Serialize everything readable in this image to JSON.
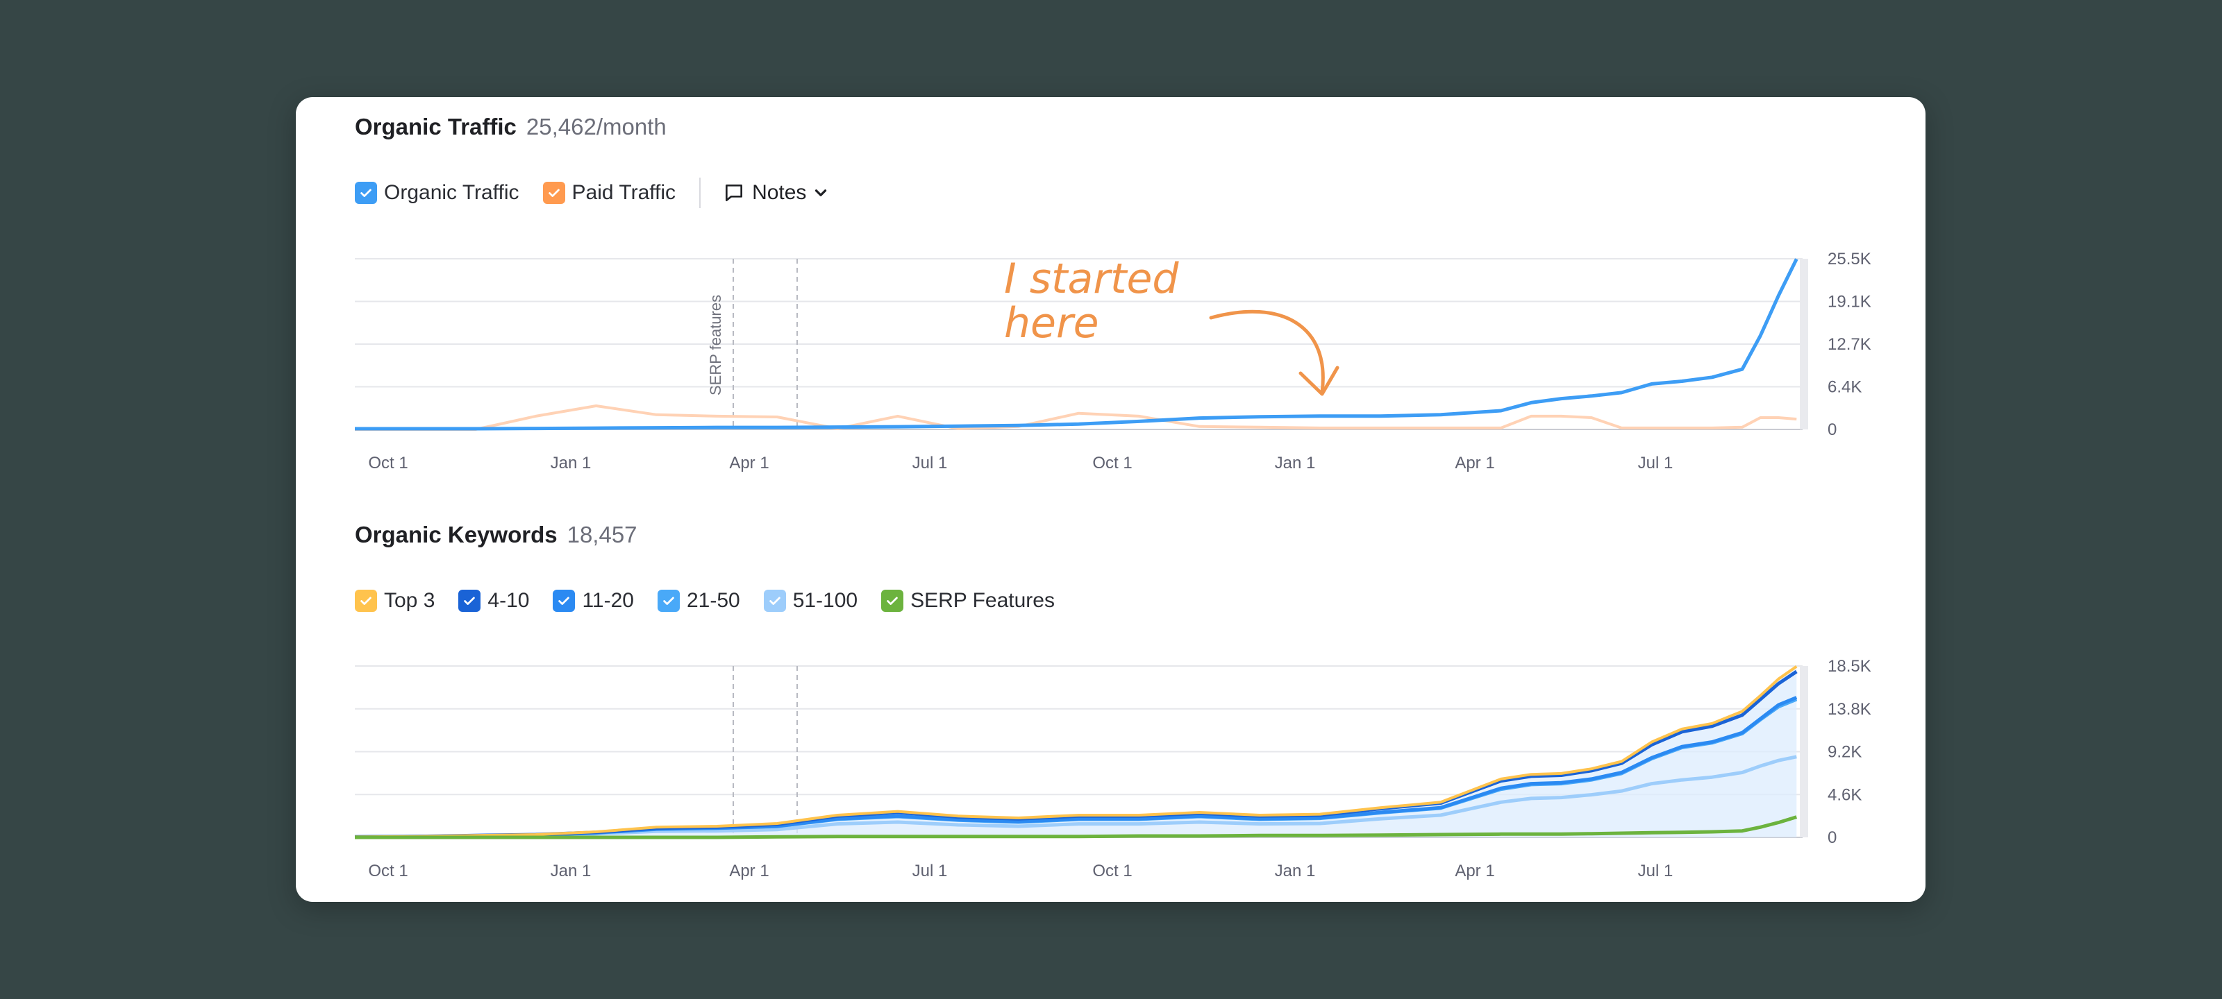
{
  "traffic": {
    "title": "Organic Traffic",
    "value": "25,462/month",
    "legend": [
      {
        "label": "Organic Traffic",
        "color": "#3d9df5"
      },
      {
        "label": "Paid Traffic",
        "color": "#ff9a4f"
      }
    ],
    "notes_label": "Notes",
    "annotation_line1": "I started",
    "annotation_line2": "here",
    "event_label": "SERP features"
  },
  "keywords": {
    "title": "Organic Keywords",
    "value": "18,457",
    "legend": [
      {
        "label": "Top 3",
        "color": "#ffc34d"
      },
      {
        "label": "4-10",
        "color": "#1a63d6"
      },
      {
        "label": "11-20",
        "color": "#2b8af2"
      },
      {
        "label": "21-50",
        "color": "#49a9f8"
      },
      {
        "label": "51-100",
        "color": "#9dcdfb"
      },
      {
        "label": "SERP Features",
        "color": "#6cb33e"
      }
    ]
  },
  "chart_data": [
    {
      "type": "line",
      "title": "Organic Traffic",
      "x_ticks": [
        "Oct 1",
        "Jan 1",
        "Apr 1",
        "Jul 1",
        "Oct 1",
        "Jan 1",
        "Apr 1",
        "Jul 1"
      ],
      "y_ticks": [
        "25.5K",
        "19.1K",
        "12.7K",
        "6.4K",
        "0"
      ],
      "ylim": [
        0,
        25500
      ],
      "grid": true,
      "x_months": [
        0,
        1,
        2,
        3,
        4,
        5,
        6,
        7,
        8,
        9,
        10,
        11,
        12,
        13,
        14,
        15,
        16,
        17,
        18,
        19,
        19.5,
        20,
        20.5,
        21,
        21.5,
        22,
        22.5,
        23,
        23.3,
        23.6,
        23.9
      ],
      "series": [
        {
          "name": "Organic Traffic",
          "color": "#3d9df5",
          "values": [
            100,
            100,
            100,
            150,
            200,
            250,
            300,
            300,
            350,
            400,
            500,
            600,
            800,
            1200,
            1700,
            1900,
            2000,
            2000,
            2200,
            2800,
            4000,
            4600,
            5000,
            5500,
            6800,
            7200,
            7800,
            9000,
            14000,
            20000,
            25462
          ]
        },
        {
          "name": "Paid Traffic",
          "color": "#ffd2b5",
          "values": [
            0,
            0,
            0,
            1800,
            3200,
            2000,
            1800,
            1700,
            100,
            1800,
            100,
            400,
            2200,
            1800,
            400,
            300,
            200,
            200,
            200,
            200,
            1800,
            1800,
            1600,
            200,
            200,
            200,
            200,
            300,
            1600,
            1600,
            1400
          ]
        }
      ]
    },
    {
      "type": "area",
      "title": "Organic Keywords",
      "x_ticks": [
        "Oct 1",
        "Jan 1",
        "Apr 1",
        "Jul 1",
        "Oct 1",
        "Jan 1",
        "Apr 1",
        "Jul 1"
      ],
      "y_ticks": [
        "18.5K",
        "13.8K",
        "9.2K",
        "4.6K",
        "0"
      ],
      "ylim": [
        0,
        18500
      ],
      "grid": true,
      "x_months": [
        0,
        1,
        2,
        3,
        4,
        5,
        6,
        7,
        8,
        9,
        10,
        11,
        12,
        13,
        14,
        15,
        16,
        17,
        18,
        19,
        19.5,
        20,
        20.5,
        21,
        21.5,
        22,
        22.5,
        23,
        23.3,
        23.6,
        23.9
      ],
      "series": [
        {
          "name": "Top 3",
          "color": "#ffc34d",
          "values": [
            50,
            100,
            200,
            300,
            600,
            1100,
            1200,
            1500,
            2400,
            2800,
            2300,
            2100,
            2400,
            2400,
            2700,
            2400,
            2500,
            3200,
            3800,
            6300,
            6800,
            6900,
            7400,
            8200,
            10300,
            11700,
            12300,
            13600,
            15300,
            17100,
            18457
          ]
        },
        {
          "name": "4-10",
          "color": "#1a63d6",
          "values": [
            50,
            100,
            200,
            300,
            550,
            1000,
            1100,
            1400,
            2300,
            2700,
            2200,
            2000,
            2300,
            2300,
            2600,
            2300,
            2400,
            3100,
            3700,
            6100,
            6600,
            6700,
            7200,
            8000,
            10000,
            11400,
            12000,
            13200,
            14900,
            16600,
            17900
          ]
        },
        {
          "name": "11-20",
          "color": "#2b8af2",
          "values": [
            40,
            80,
            160,
            250,
            500,
            900,
            1000,
            1200,
            2000,
            2300,
            1900,
            1700,
            2000,
            2000,
            2300,
            2000,
            2100,
            2700,
            3200,
            5300,
            5800,
            5900,
            6300,
            7000,
            8600,
            9800,
            10300,
            11300,
            12800,
            14300,
            15100
          ]
        },
        {
          "name": "21-50",
          "color": "#49a9f8",
          "values": [
            40,
            80,
            160,
            250,
            480,
            880,
            980,
            1180,
            1950,
            2250,
            1850,
            1650,
            1950,
            1950,
            2250,
            1950,
            2050,
            2650,
            3150,
            5200,
            5700,
            5800,
            6200,
            6900,
            8500,
            9700,
            10200,
            11200,
            12700,
            14100,
            14900
          ]
        },
        {
          "name": "51-100",
          "color": "#9dcdfb",
          "values": [
            30,
            60,
            120,
            200,
            380,
            650,
            700,
            850,
            1450,
            1650,
            1350,
            1200,
            1450,
            1450,
            1650,
            1450,
            1500,
            2000,
            2400,
            3800,
            4200,
            4300,
            4600,
            5000,
            5800,
            6200,
            6500,
            7000,
            7700,
            8300,
            8700
          ]
        },
        {
          "name": "SERP Features",
          "color": "#6cb33e",
          "values": [
            0,
            0,
            0,
            0,
            0,
            0,
            0,
            50,
            100,
            100,
            100,
            100,
            100,
            150,
            150,
            200,
            200,
            250,
            300,
            350,
            350,
            350,
            400,
            450,
            500,
            550,
            600,
            700,
            1100,
            1600,
            2200
          ]
        }
      ]
    }
  ]
}
